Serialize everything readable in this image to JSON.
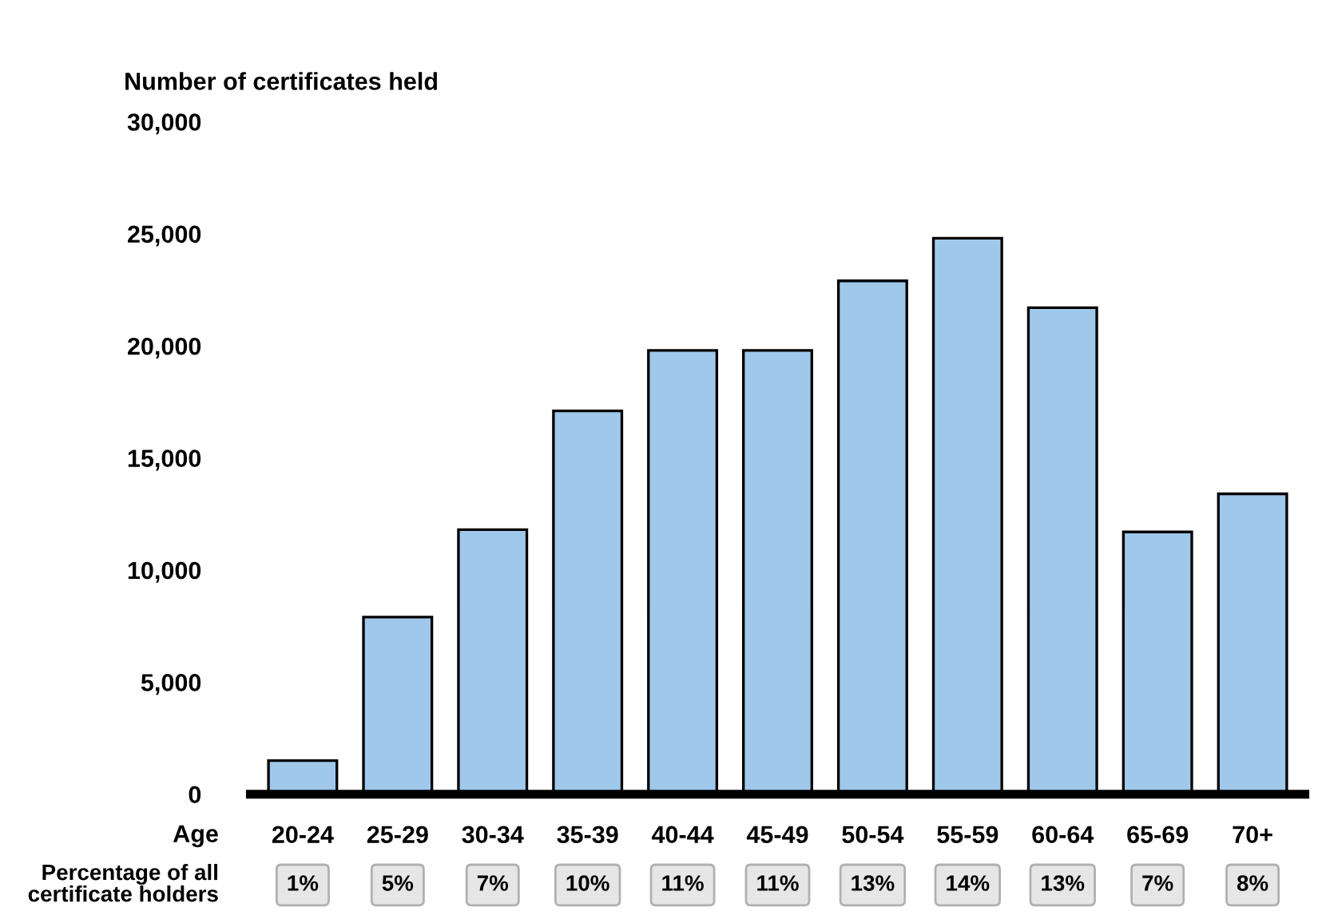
{
  "chart_data": {
    "type": "bar",
    "ylabel": "Number of certificates held",
    "xlabel": "Age",
    "categories": [
      "20-24",
      "25-29",
      "30-34",
      "35-39",
      "40-44",
      "45-49",
      "50-54",
      "55-59",
      "60-64",
      "65-69",
      "70+"
    ],
    "values": [
      1500,
      7900,
      11800,
      17100,
      19800,
      19800,
      22900,
      24800,
      21700,
      11700,
      13400
    ],
    "color": "#a0c8ea",
    "ylim": [
      0,
      30000
    ],
    "yticks": [
      {
        "value": 0,
        "label": "0"
      },
      {
        "value": 5000,
        "label": "5,000"
      },
      {
        "value": 10000,
        "label": "10,000"
      },
      {
        "value": 15000,
        "label": "15,000"
      },
      {
        "value": 20000,
        "label": "20,000"
      },
      {
        "value": 25000,
        "label": "25,000"
      },
      {
        "value": 30000,
        "label": "30,000"
      }
    ],
    "grid": false,
    "annotations": [
      "Percentage of all\ncertificate holders",
      "1%",
      "5%",
      "7%",
      "10%",
      "11%",
      "11%",
      "13%",
      "14%",
      "13%",
      "7%",
      "8%"
    ]
  }
}
